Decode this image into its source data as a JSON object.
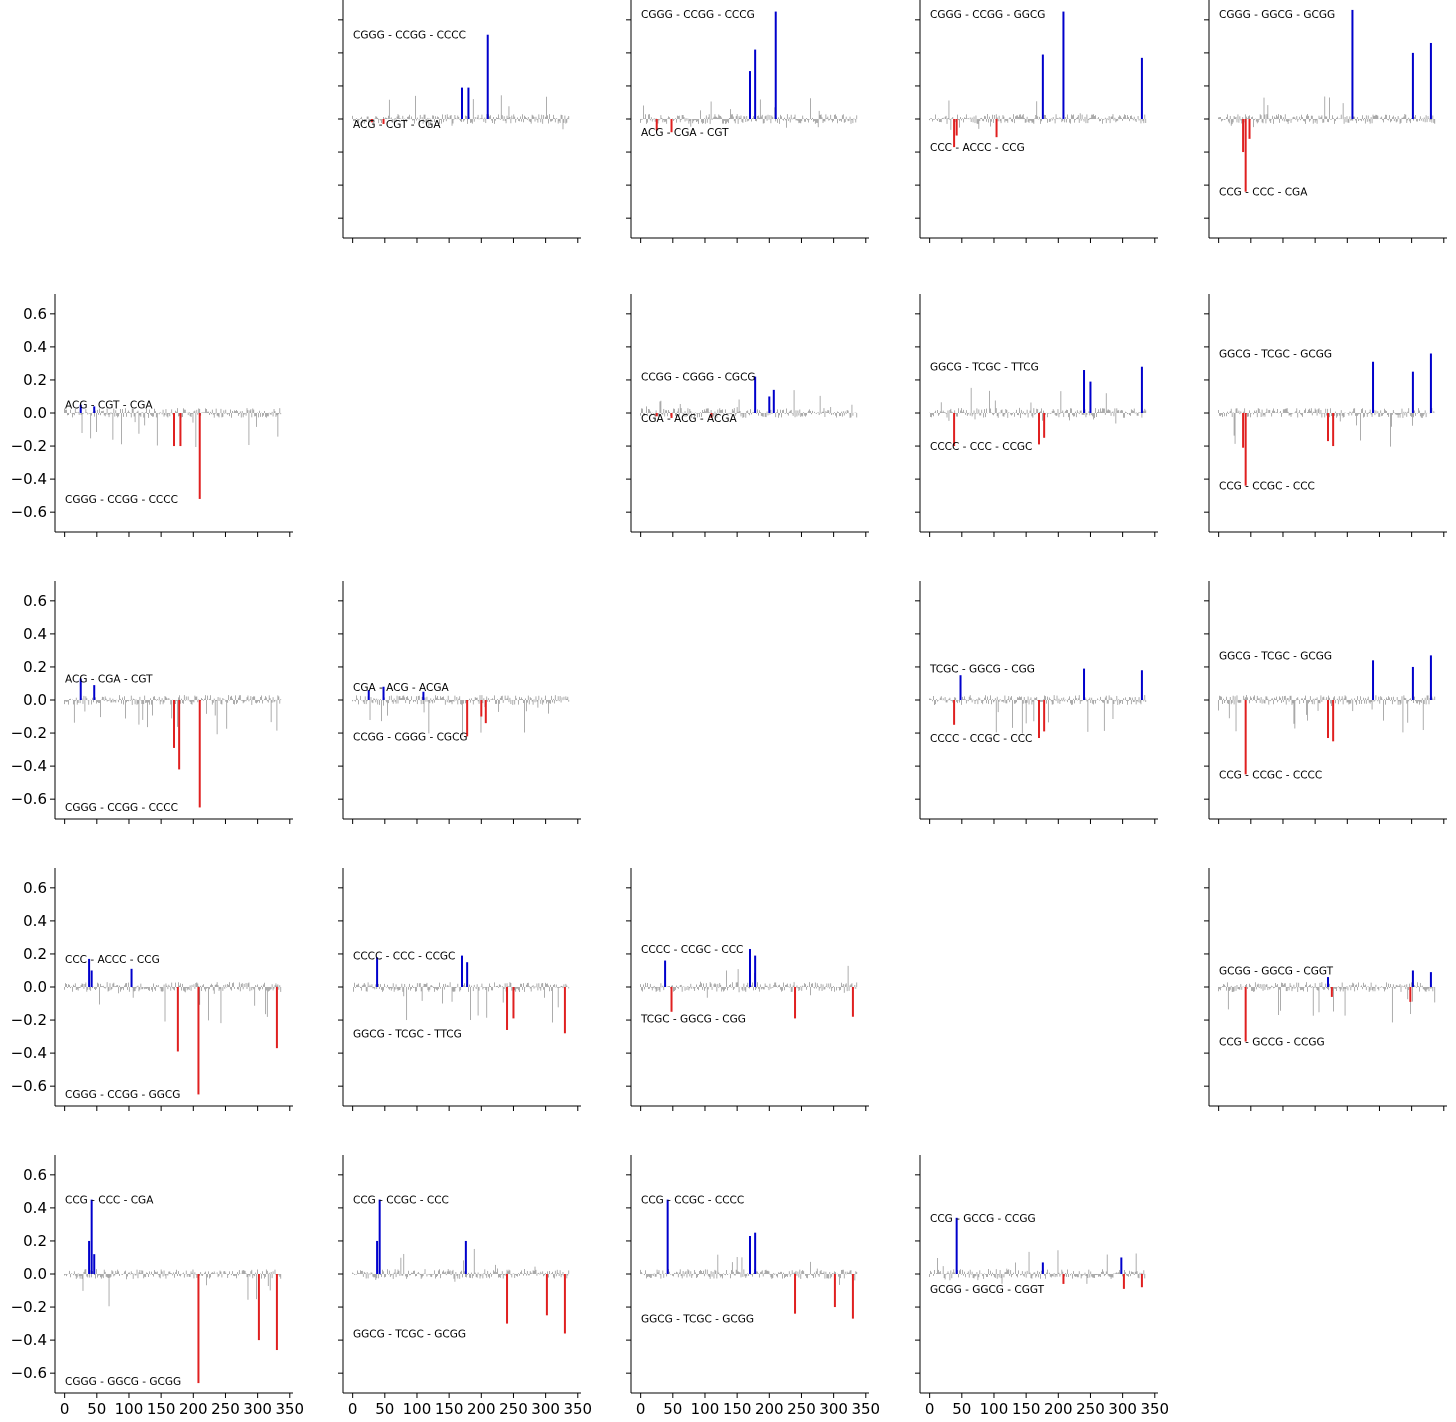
{
  "chart_data": {
    "type": "bar",
    "layout": "5x5 grid of small panels (diagonal panels empty)",
    "grid": false,
    "x_ticks": [
      "0",
      "50",
      "100",
      "150",
      "200",
      "250",
      "300",
      "350"
    ],
    "y_ticks": [
      "0.6",
      "0.4",
      "0.2",
      "0.0",
      "−0.2",
      "−0.4",
      "−0.6"
    ],
    "xlim": [
      -15,
      355
    ],
    "ylim": [
      -0.72,
      0.72
    ],
    "colors": {
      "positive_highlight": "#0000cc",
      "negative_highlight": "#e02020",
      "background": "#808080"
    },
    "panels": [
      {
        "row": 0,
        "col": 1,
        "top_label": "CGGG - CCGG - CCCC",
        "bottom_label": "ACG - CGT - CGA",
        "pos": [
          [
            170,
            0.19
          ],
          [
            180,
            0.19
          ],
          [
            210,
            0.51
          ]
        ],
        "neg": [
          [
            30,
            -0.02
          ],
          [
            48,
            -0.03
          ]
        ]
      },
      {
        "row": 0,
        "col": 2,
        "top_label": "CGGG - CCGG - CCCG",
        "bottom_label": "ACG - CGA - CGT",
        "pos": [
          [
            170,
            0.29
          ],
          [
            178,
            0.42
          ],
          [
            210,
            0.65
          ]
        ],
        "neg": [
          [
            25,
            -0.07
          ],
          [
            48,
            -0.08
          ]
        ]
      },
      {
        "row": 0,
        "col": 3,
        "top_label": "CGGG - CCGG - GGCG",
        "bottom_label": "CCC - ACCC - CCG",
        "pos": [
          [
            176,
            0.39
          ],
          [
            208,
            0.65
          ],
          [
            330,
            0.37
          ]
        ],
        "neg": [
          [
            38,
            -0.17
          ],
          [
            42,
            -0.1
          ],
          [
            104,
            -0.11
          ]
        ]
      },
      {
        "row": 0,
        "col": 4,
        "top_label": "CGGG - GGCG - GCGG",
        "bottom_label": "CCG - CCC - CGA",
        "pos": [
          [
            208,
            0.66
          ],
          [
            302,
            0.4
          ],
          [
            330,
            0.46
          ]
        ],
        "neg": [
          [
            38,
            -0.2
          ],
          [
            42,
            -0.44
          ],
          [
            48,
            -0.12
          ]
        ]
      },
      {
        "row": 1,
        "col": 0,
        "top_label": "ACG - CGT - CGA",
        "bottom_label": "CGGG - CCGG - CCCC",
        "pos": [
          [
            25,
            0.05
          ],
          [
            46,
            0.04
          ]
        ],
        "neg": [
          [
            170,
            -0.2
          ],
          [
            180,
            -0.2
          ],
          [
            210,
            -0.52
          ]
        ]
      },
      {
        "row": 1,
        "col": 2,
        "top_label": "CCGG - CGGG - CGCG",
        "bottom_label": "CGA - ACG - ACGA",
        "pos": [
          [
            178,
            0.22
          ],
          [
            200,
            0.1
          ],
          [
            207,
            0.14
          ]
        ],
        "neg": [
          [
            25,
            -0.02
          ],
          [
            48,
            -0.03
          ],
          [
            110,
            -0.03
          ]
        ]
      },
      {
        "row": 1,
        "col": 3,
        "top_label": "GGCG - TCGC - TTCG",
        "bottom_label": "CCCC - CCC - CCGC",
        "pos": [
          [
            240,
            0.26
          ],
          [
            250,
            0.19
          ],
          [
            330,
            0.28
          ]
        ],
        "neg": [
          [
            38,
            -0.2
          ],
          [
            170,
            -0.19
          ],
          [
            178,
            -0.15
          ]
        ]
      },
      {
        "row": 1,
        "col": 4,
        "top_label": "GGCG - TCGC - GCGG",
        "bottom_label": "CCG - CCGC - CCC",
        "pos": [
          [
            240,
            0.31
          ],
          [
            302,
            0.25
          ],
          [
            330,
            0.36
          ]
        ],
        "neg": [
          [
            38,
            -0.21
          ],
          [
            42,
            -0.44
          ],
          [
            170,
            -0.17
          ],
          [
            178,
            -0.2
          ]
        ]
      },
      {
        "row": 2,
        "col": 0,
        "top_label": "ACG - CGA - CGT",
        "bottom_label": "CGGG - CCGG - CCCC",
        "pos": [
          [
            25,
            0.13
          ],
          [
            46,
            0.09
          ]
        ],
        "neg": [
          [
            170,
            -0.29
          ],
          [
            178,
            -0.42
          ],
          [
            210,
            -0.65
          ]
        ]
      },
      {
        "row": 2,
        "col": 1,
        "top_label": "CGA - ACG - ACGA",
        "bottom_label": "CCGG - CGGG - CGCG",
        "pos": [
          [
            25,
            0.06
          ],
          [
            48,
            0.08
          ],
          [
            110,
            0.05
          ]
        ],
        "neg": [
          [
            178,
            -0.22
          ],
          [
            200,
            -0.1
          ],
          [
            207,
            -0.14
          ]
        ]
      },
      {
        "row": 2,
        "col": 3,
        "top_label": "TCGC - GGCG - CGG",
        "bottom_label": "CCCC - CCGC - CCC",
        "pos": [
          [
            48,
            0.15
          ],
          [
            240,
            0.19
          ],
          [
            330,
            0.18
          ]
        ],
        "neg": [
          [
            38,
            -0.15
          ],
          [
            170,
            -0.23
          ],
          [
            178,
            -0.19
          ]
        ]
      },
      {
        "row": 2,
        "col": 4,
        "top_label": "GGCG - TCGC - GCGG",
        "bottom_label": "CCG - CCGC - CCCC",
        "pos": [
          [
            240,
            0.24
          ],
          [
            302,
            0.2
          ],
          [
            330,
            0.27
          ]
        ],
        "neg": [
          [
            42,
            -0.45
          ],
          [
            170,
            -0.23
          ],
          [
            178,
            -0.25
          ]
        ]
      },
      {
        "row": 3,
        "col": 0,
        "top_label": "CCC - ACCC - CCG",
        "bottom_label": "CGGG - CCGG - GGCG",
        "pos": [
          [
            38,
            0.17
          ],
          [
            42,
            0.1
          ],
          [
            104,
            0.11
          ]
        ],
        "neg": [
          [
            176,
            -0.39
          ],
          [
            208,
            -0.65
          ],
          [
            330,
            -0.37
          ]
        ]
      },
      {
        "row": 3,
        "col": 1,
        "top_label": "CCCC - CCC - CCGC",
        "bottom_label": "GGCG - TCGC - TTCG",
        "pos": [
          [
            38,
            0.18
          ],
          [
            170,
            0.19
          ],
          [
            178,
            0.15
          ]
        ],
        "neg": [
          [
            240,
            -0.26
          ],
          [
            250,
            -0.19
          ],
          [
            330,
            -0.28
          ]
        ]
      },
      {
        "row": 3,
        "col": 2,
        "top_label": "CCCC - CCGC - CCC",
        "bottom_label": "TCGC - GGCG - CGG",
        "pos": [
          [
            38,
            0.16
          ],
          [
            170,
            0.23
          ],
          [
            178,
            0.19
          ]
        ],
        "neg": [
          [
            48,
            -0.15
          ],
          [
            240,
            -0.19
          ],
          [
            330,
            -0.18
          ]
        ]
      },
      {
        "row": 3,
        "col": 4,
        "top_label": "GCGG - GGCG - CGGT",
        "bottom_label": "CCG - GCCG - CCGG",
        "pos": [
          [
            170,
            0.06
          ],
          [
            302,
            0.1
          ],
          [
            330,
            0.09
          ]
        ],
        "neg": [
          [
            42,
            -0.33
          ],
          [
            176,
            -0.06
          ],
          [
            298,
            -0.09
          ]
        ]
      },
      {
        "row": 4,
        "col": 0,
        "top_label": "CCG - CCC - CGA",
        "bottom_label": "CGGG - GGCG - GCGG",
        "pos": [
          [
            38,
            0.2
          ],
          [
            42,
            0.45
          ],
          [
            46,
            0.12
          ]
        ],
        "neg": [
          [
            208,
            -0.66
          ],
          [
            302,
            -0.4
          ],
          [
            330,
            -0.46
          ]
        ]
      },
      {
        "row": 4,
        "col": 1,
        "top_label": "CCG - CCGC - CCC",
        "bottom_label": "GGCG - TCGC - GCGG",
        "pos": [
          [
            38,
            0.2
          ],
          [
            42,
            0.45
          ],
          [
            176,
            0.2
          ]
        ],
        "neg": [
          [
            240,
            -0.3
          ],
          [
            302,
            -0.25
          ],
          [
            330,
            -0.36
          ]
        ]
      },
      {
        "row": 4,
        "col": 2,
        "top_label": "CCG - CCGC - CCCC",
        "bottom_label": "GGCG - TCGC - GCGG",
        "pos": [
          [
            42,
            0.45
          ],
          [
            170,
            0.23
          ],
          [
            178,
            0.25
          ]
        ],
        "neg": [
          [
            240,
            -0.24
          ],
          [
            302,
            -0.2
          ],
          [
            330,
            -0.27
          ]
        ]
      },
      {
        "row": 4,
        "col": 3,
        "top_label": "CCG - GCCG - CCGG",
        "bottom_label": "GCGG - GGCG - CGGT",
        "pos": [
          [
            42,
            0.34
          ],
          [
            176,
            0.07
          ],
          [
            298,
            0.1
          ]
        ],
        "neg": [
          [
            208,
            -0.06
          ],
          [
            302,
            -0.09
          ],
          [
            330,
            -0.08
          ]
        ]
      }
    ]
  }
}
